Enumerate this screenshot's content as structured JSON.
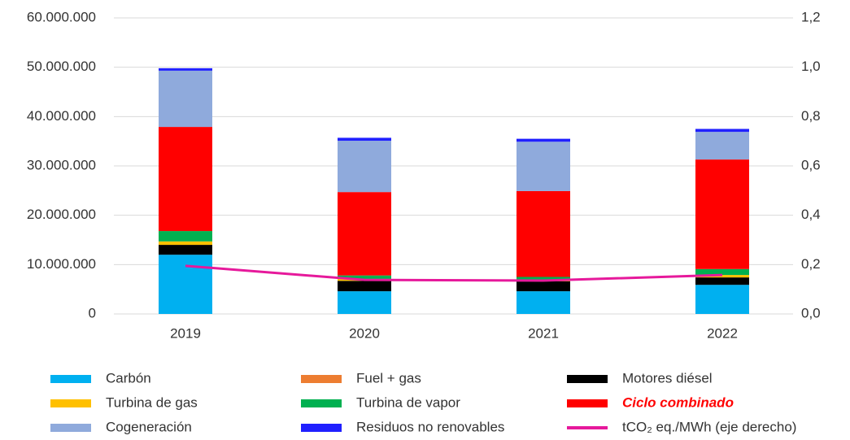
{
  "chart_data": {
    "type": "stacked_bar_line",
    "categories": [
      "2019",
      "2020",
      "2021",
      "2022"
    ],
    "series": [
      {
        "name": "Carbón",
        "color": "#00b0f0",
        "values": [
          12000000,
          4600000,
          4600000,
          5900000
        ]
      },
      {
        "name": "Fuel + gas",
        "color": "#ed7d31",
        "values": [
          0,
          0,
          0,
          0
        ]
      },
      {
        "name": "Motores diésel",
        "color": "#000000",
        "values": [
          2000000,
          2100000,
          2000000,
          1500000
        ]
      },
      {
        "name": "Turbina de gas",
        "color": "#ffc000",
        "values": [
          700000,
          400000,
          300000,
          500000
        ]
      },
      {
        "name": "Turbina de vapor",
        "color": "#00b050",
        "values": [
          2100000,
          700000,
          600000,
          1200000
        ]
      },
      {
        "name": "Ciclo combinado",
        "color": "#ff0000",
        "values": [
          21100000,
          16900000,
          17400000,
          22200000
        ]
      },
      {
        "name": "Cogeneración",
        "color": "#8faadc",
        "values": [
          11400000,
          10400000,
          10000000,
          5600000
        ]
      },
      {
        "name": "Residuos no renovables",
        "color": "#2020ff",
        "values": [
          500000,
          600000,
          600000,
          600000
        ]
      },
      {
        "name": "tCO₂ eq./MWh (eje derecho)",
        "color": "#e6199b",
        "axis": "y2",
        "type": "line",
        "values": [
          0.195,
          0.138,
          0.135,
          0.158
        ]
      }
    ],
    "ylim": [
      0,
      60000000
    ],
    "yticks": [
      {
        "value": 0,
        "label": "0"
      },
      {
        "value": 10000000,
        "label": "10.000.000"
      },
      {
        "value": 20000000,
        "label": "20.000.000"
      },
      {
        "value": 30000000,
        "label": "30.000.000"
      },
      {
        "value": 40000000,
        "label": "40.000.000"
      },
      {
        "value": 50000000,
        "label": "50.000.000"
      },
      {
        "value": 60000000,
        "label": "60.000.000"
      }
    ],
    "y2lim": [
      0,
      1.2
    ],
    "y2ticks": [
      {
        "value": 0,
        "label": "0,0"
      },
      {
        "value": 0.2,
        "label": "0,2"
      },
      {
        "value": 0.4,
        "label": "0,4"
      },
      {
        "value": 0.6,
        "label": "0,6"
      },
      {
        "value": 0.8,
        "label": "0,8"
      },
      {
        "value": 1.0,
        "label": "1,0"
      },
      {
        "value": 1.2,
        "label": "1,2"
      }
    ],
    "grid": true,
    "legend": "bottom"
  }
}
